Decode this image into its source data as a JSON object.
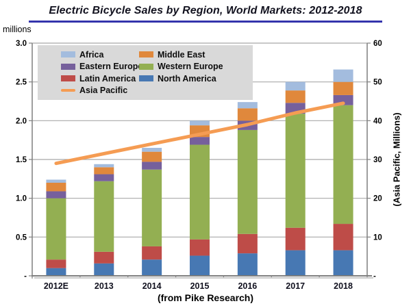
{
  "title": "Electric Bicycle Sales by Region, World Markets: 2012-2018",
  "caption": "(from Pike Research)",
  "left_axis": {
    "label": "millions",
    "ticks": [
      "3.0",
      "2.5",
      "2.0",
      "1.5",
      "1.0",
      "0.5",
      "-"
    ]
  },
  "right_axis": {
    "label": "(Asia Pacific, Millions)",
    "ticks": [
      "60",
      "50",
      "40",
      "30",
      "20",
      "10",
      "-"
    ]
  },
  "colors": {
    "africa": "#A3BCDE",
    "eastern_europe": "#76609C",
    "latin_america": "#BE4C48",
    "asia_pacific": "#F59C53",
    "middle_east": "#E0883C",
    "western_europe": "#93AF52",
    "north_america": "#4778B3",
    "gridline": "#A8A8A8",
    "axis": "#7F7F7F",
    "title_rule": "#3434AC"
  },
  "legend": {
    "columns": [
      [
        {
          "label": "Africa",
          "key": "africa",
          "marker": "box"
        },
        {
          "label": "Eastern Europe",
          "key": "eastern_europe",
          "marker": "box"
        },
        {
          "label": "Latin America",
          "key": "latin_america",
          "marker": "box"
        },
        {
          "label": "Asia Pacific",
          "key": "asia_pacific",
          "marker": "line"
        }
      ],
      [
        {
          "label": "Middle East",
          "key": "middle_east",
          "marker": "box"
        },
        {
          "label": "Western Europe",
          "key": "western_europe",
          "marker": "box"
        },
        {
          "label": "North America",
          "key": "north_america",
          "marker": "box"
        }
      ]
    ]
  },
  "chart_data": {
    "type": "stacked-bar+line",
    "categories": [
      "2012E",
      "2013",
      "2014",
      "2015",
      "2016",
      "2017",
      "2018"
    ],
    "stacked_series": [
      {
        "name": "North America",
        "key": "north_america",
        "values": [
          0.1,
          0.16,
          0.21,
          0.26,
          0.29,
          0.33,
          0.33
        ]
      },
      {
        "name": "Latin America",
        "key": "latin_america",
        "values": [
          0.11,
          0.15,
          0.17,
          0.21,
          0.25,
          0.29,
          0.34
        ]
      },
      {
        "name": "Western Europe",
        "key": "western_europe",
        "values": [
          0.79,
          0.91,
          0.99,
          1.22,
          1.34,
          1.47,
          1.53
        ]
      },
      {
        "name": "Eastern Europe",
        "key": "eastern_europe",
        "values": [
          0.09,
          0.09,
          0.1,
          0.1,
          0.12,
          0.14,
          0.13
        ]
      },
      {
        "name": "Middle East",
        "key": "middle_east",
        "values": [
          0.11,
          0.09,
          0.13,
          0.15,
          0.16,
          0.16,
          0.17
        ]
      },
      {
        "name": "Africa",
        "key": "africa",
        "values": [
          0.04,
          0.04,
          0.05,
          0.06,
          0.08,
          0.11,
          0.16
        ]
      }
    ],
    "bar_totals": [
      1.24,
      1.44,
      1.65,
      2.0,
      2.24,
      2.5,
      2.66
    ],
    "line_series": {
      "name": "Asia Pacific",
      "key": "asia_pacific",
      "axis": "right",
      "values": [
        29,
        31.5,
        34,
        36.5,
        39,
        42,
        44.5
      ]
    },
    "left_ylim": [
      0,
      3.0
    ],
    "right_ylim": [
      0,
      60
    ],
    "grid": "horizontal",
    "legend_position": "top-left-inside"
  }
}
